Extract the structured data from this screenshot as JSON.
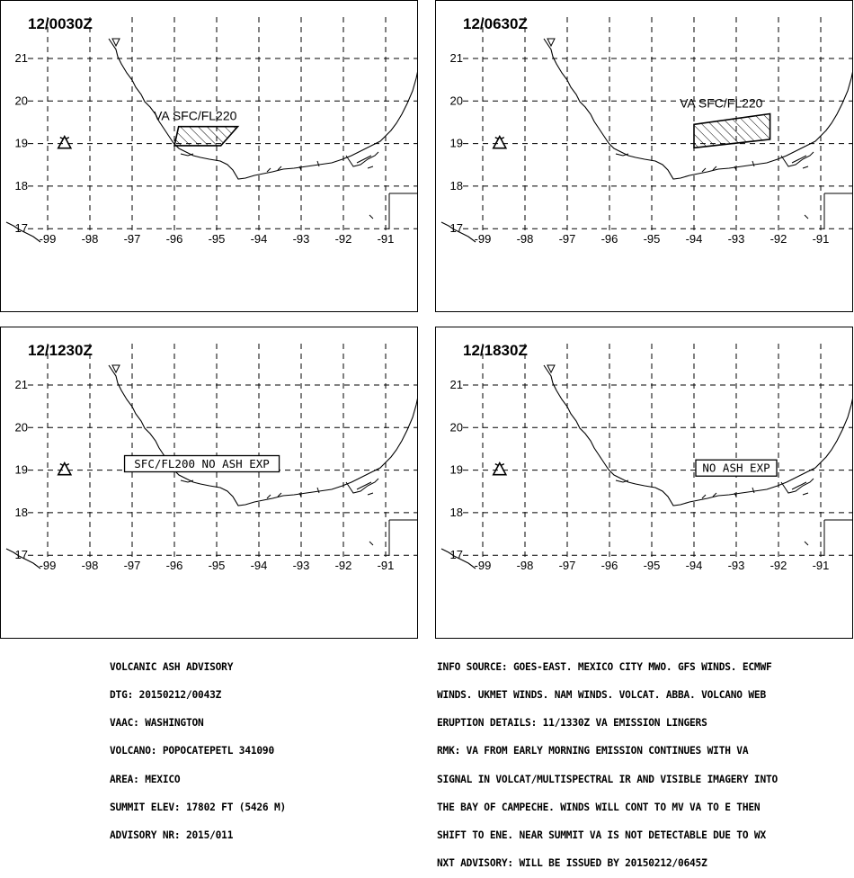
{
  "lat_ticks": [
    "21",
    "20",
    "19",
    "18",
    "17"
  ],
  "lon_ticks": [
    "-99",
    "-98",
    "-97",
    "-96",
    "-95",
    "-94",
    "-93",
    "-92",
    "-91"
  ],
  "panels": [
    {
      "time": "12/0030Z",
      "label": "VA SFC/FL220",
      "label_style": "plain",
      "polygon": [
        [
          -95.9,
          19.4
        ],
        [
          -94.5,
          19.4
        ],
        [
          -94.9,
          18.95
        ],
        [
          -96.0,
          18.95
        ]
      ]
    },
    {
      "time": "12/0630Z",
      "label": "VA SFC/FL220",
      "label_style": "plain",
      "polygon": [
        [
          -94.0,
          19.45
        ],
        [
          -92.2,
          19.7
        ],
        [
          -92.2,
          19.1
        ],
        [
          -94.0,
          18.9
        ]
      ]
    },
    {
      "time": "12/1230Z",
      "label": "SFC/FL200 NO ASH EXP",
      "label_style": "boxed",
      "label_pos": [
        -95.35,
        19.15
      ],
      "polygon": []
    },
    {
      "time": "12/1830Z",
      "label": "NO ASH EXP",
      "label_style": "boxed",
      "label_pos": [
        -93.0,
        19.05
      ],
      "polygon": []
    }
  ],
  "advisory_left": [
    "VOLCANIC ASH ADVISORY",
    "DTG: 20150212/0043Z",
    "VAAC: WASHINGTON",
    "VOLCANO: POPOCATEPETL 341090",
    "AREA: MEXICO",
    "SUMMIT ELEV: 17802 FT (5426 M)",
    "ADVISORY NR: 2015/011"
  ],
  "advisory_right": [
    "INFO SOURCE: GOES-EAST. MEXICO CITY MWO. GFS WINDS. ECMWF",
    "WINDS. UKMET WINDS. NAM WINDS. VOLCAT. ABBA. VOLCANO WEB",
    "ERUPTION DETAILS: 11/1330Z VA EMISSION LINGERS",
    "RMK: VA FROM EARLY MORNING EMISSION CONTINUES WITH VA",
    "SIGNAL IN VOLCAT/MULTISPECTRAL IR AND VISIBLE IMAGERY INTO",
    "THE BAY OF CAMPECHE. WINDS WILL CONT TO MV VA TO E THEN",
    "SHIFT TO ENE. NEAR SUMMIT VA IS NOT DETECTABLE DUE TO WX",
    "NXT ADVISORY: WILL BE ISSUED BY 20150212/0645Z"
  ],
  "volcano": {
    "name": "POPOCATEPETL",
    "lon": -98.6,
    "lat": 19.02
  }
}
